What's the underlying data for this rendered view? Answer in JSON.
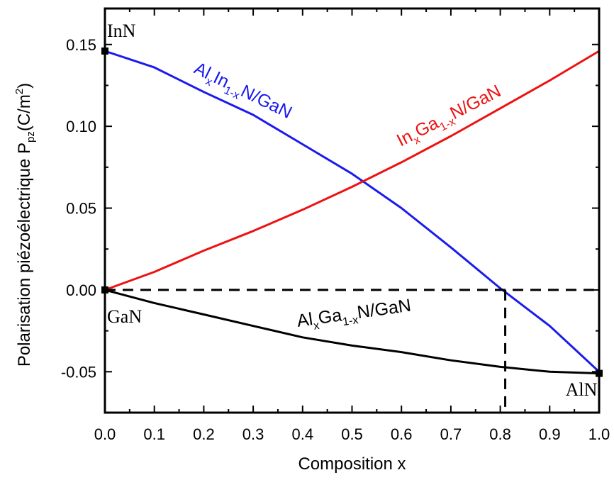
{
  "chart_data": {
    "type": "line",
    "xlabel": "Composition x",
    "ylabel_main": "Polarisation piézoélectrique P",
    "ylabel_sub": "pz",
    "ylabel_unit_pre": "(C/m",
    "ylabel_unit_sup": "2",
    "ylabel_unit_post": ")",
    "xlim": [
      0.0,
      1.0
    ],
    "ylim": [
      -0.075,
      0.172
    ],
    "xticks": [
      "0.0",
      "0.1",
      "0.2",
      "0.3",
      "0.4",
      "0.5",
      "0.6",
      "0.7",
      "0.8",
      "0.9",
      "1.0"
    ],
    "yticks": [
      "0.15",
      "0.10",
      "0.05",
      "0.00",
      "-0.05"
    ],
    "grid": false,
    "series": [
      {
        "color": "#1a1aee",
        "x": [
          0.0,
          0.1,
          0.2,
          0.3,
          0.4,
          0.5,
          0.6,
          0.7,
          0.8,
          0.9,
          1.0
        ],
        "y": [
          0.146,
          0.136,
          0.121,
          0.107,
          0.089,
          0.071,
          0.05,
          0.026,
          0.001,
          -0.022,
          -0.05
        ],
        "label": {
          "base": "Al",
          "s1": "x",
          "mid": "In",
          "s2": "1-x",
          "tail": "N/GaN"
        }
      },
      {
        "color": "#ee1111",
        "x": [
          0.0,
          0.1,
          0.2,
          0.3,
          0.4,
          0.5,
          0.6,
          0.7,
          0.8,
          0.9,
          1.0
        ],
        "y": [
          0.0,
          0.011,
          0.024,
          0.036,
          0.049,
          0.063,
          0.078,
          0.094,
          0.111,
          0.128,
          0.146
        ],
        "label": {
          "base": "In",
          "s1": "x",
          "mid": "Ga",
          "s2": "1-x",
          "tail": "N/GaN"
        }
      },
      {
        "color": "#000000",
        "x": [
          0.0,
          0.1,
          0.2,
          0.3,
          0.4,
          0.5,
          0.6,
          0.7,
          0.8,
          0.9,
          1.0
        ],
        "y": [
          0.0,
          -0.008,
          -0.015,
          -0.022,
          -0.029,
          -0.034,
          -0.038,
          -0.043,
          -0.047,
          -0.05,
          -0.051
        ],
        "label": {
          "base": "Al",
          "s1": "x",
          "mid": "Ga",
          "s2": "1-x",
          "tail": "N/GaN"
        }
      }
    ],
    "reference_lines": {
      "y_zero": 0.0,
      "x_cross": 0.81
    },
    "materials": [
      {
        "name": "InN",
        "x": 0.0,
        "y": 0.146
      },
      {
        "name": "GaN",
        "x": 0.0,
        "y": 0.0
      },
      {
        "name": "AlN",
        "x": 1.0,
        "y": -0.051
      }
    ]
  }
}
